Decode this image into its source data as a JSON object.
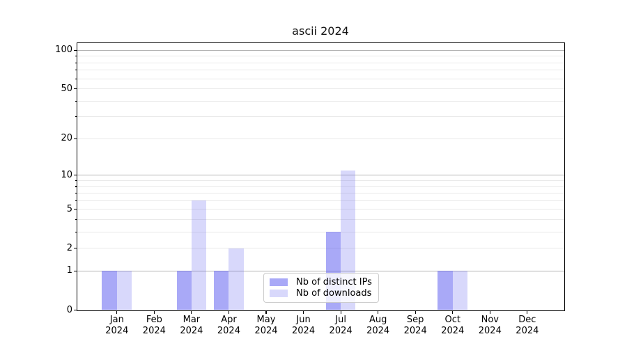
{
  "chart_data": {
    "type": "bar",
    "title": "ascii 2024",
    "categories": [
      "Jan 2024",
      "Feb 2024",
      "Mar 2024",
      "Apr 2024",
      "May 2024",
      "Jun 2024",
      "Jul 2024",
      "Aug 2024",
      "Sep 2024",
      "Oct 2024",
      "Nov 2024",
      "Dec 2024"
    ],
    "months": [
      "Jan",
      "Feb",
      "Mar",
      "Apr",
      "May",
      "Jun",
      "Jul",
      "Aug",
      "Sep",
      "Oct",
      "Nov",
      "Dec"
    ],
    "year": "2024",
    "series": [
      {
        "name": "Nb of distinct IPs",
        "color": "rgba(90,90,240,0.52)",
        "color_hex": "#a9a9f6",
        "values": [
          1,
          0,
          1,
          1,
          0,
          0,
          3,
          0,
          0,
          1,
          0,
          0
        ]
      },
      {
        "name": "Nb of downloads",
        "color": "rgba(90,90,240,0.235)",
        "color_hex": "#d9d9f9",
        "values": [
          1,
          0,
          6,
          2,
          0,
          0,
          11,
          0,
          0,
          1,
          0,
          0
        ]
      }
    ],
    "xlabel": "",
    "ylabel": "",
    "y_scale": "log(1+y)",
    "ylim": [
      0,
      115
    ],
    "y_tick_labels": [
      0,
      1,
      2,
      5,
      10,
      20,
      50,
      100
    ],
    "y_major_gridlines": [
      1,
      10,
      100
    ],
    "y_minor_gridlines": [
      2,
      3,
      4,
      5,
      6,
      7,
      8,
      9,
      20,
      30,
      40,
      50,
      60,
      70,
      80,
      90
    ],
    "grid": true,
    "legend_position": "inside bottom-center"
  },
  "colors": {
    "background": "#ffffff",
    "grid_major": "#b3b3b3",
    "grid_minor": "#e9e9e9",
    "spine": "#000000",
    "text": "#000000",
    "legend_border": "#cccccc",
    "legend_background": "rgba(255,255,255,0.8)"
  }
}
